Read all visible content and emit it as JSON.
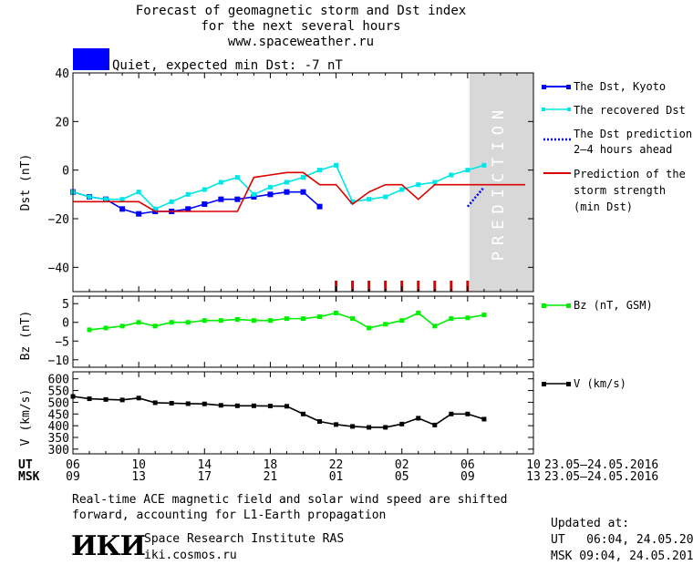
{
  "header": {
    "line1": "Forecast of geomagnetic storm and Dst index",
    "line2": "for the next several hours",
    "line3": "www.spaceweather.ru"
  },
  "status": {
    "text": "Quiet, expected min Dst: -7 nT",
    "swatch_color": "#0000ff"
  },
  "prediction_label": "PREDICTION",
  "time_axis": {
    "ut_label": "UT",
    "msk_label": "MSK",
    "ut_ticks": [
      "06",
      "10",
      "14",
      "18",
      "22",
      "02",
      "06",
      "10"
    ],
    "msk_ticks": [
      "09",
      "13",
      "17",
      "21",
      "01",
      "05",
      "09",
      "13"
    ],
    "ut_range": "23.05–24.05.2016",
    "msk_range": "23.05–24.05.2016"
  },
  "chart_data": [
    {
      "type": "line",
      "ylabel": "Dst (nT)",
      "ylim": [
        -50,
        40
      ],
      "yticks": [
        "40",
        "20",
        "0",
        "−20",
        "−40"
      ],
      "xlim_hours": [
        6,
        34
      ],
      "prediction_region_start_hour": 30,
      "series": [
        {
          "name": "The Dst, Kyoto",
          "color": "#0000ff",
          "marker": "square",
          "x": [
            6,
            7,
            8,
            9,
            10,
            11,
            12,
            13,
            14,
            15,
            16,
            17,
            18,
            19,
            20,
            21
          ],
          "y": [
            -9,
            -11,
            -12,
            -16,
            -18,
            -17,
            -17,
            -16,
            -14,
            -12,
            -12,
            -11,
            -10,
            -9,
            -9,
            -15
          ]
        },
        {
          "name": "The recovered Dst",
          "color": "#00e5e5",
          "marker": "square",
          "x": [
            6,
            7,
            8,
            9,
            10,
            11,
            12,
            13,
            14,
            15,
            16,
            17,
            18,
            19,
            20,
            21,
            22,
            23,
            24,
            25,
            26,
            27,
            28,
            29,
            30,
            31
          ],
          "y": [
            -9,
            -11,
            -12,
            -12,
            -9,
            -16,
            -13,
            -10,
            -8,
            -5,
            -3,
            -10,
            -7,
            -5,
            -3,
            0,
            2,
            -13,
            -12,
            -11,
            -8,
            -6,
            -5,
            -2,
            0,
            2
          ]
        },
        {
          "name": "The Dst prediction\n2–4 hours ahead",
          "color": "#0000ff",
          "dashed": true,
          "x": [
            30,
            31
          ],
          "y": [
            -15,
            -7
          ]
        },
        {
          "name": "Prediction of the\nstorm strength\n(min Dst)",
          "color": "#dd0000",
          "x": [
            6,
            7,
            8,
            9,
            10,
            11,
            12,
            13,
            14,
            15,
            16,
            17,
            18,
            19,
            20,
            21,
            22,
            23,
            24,
            25,
            26,
            27,
            28,
            29,
            30,
            31,
            32,
            33.5
          ],
          "y": [
            -13,
            -13,
            -13,
            -13,
            -13,
            -17,
            -17,
            -17,
            -17,
            -17,
            -17,
            -3,
            -2,
            -1,
            -1,
            -6,
            -6,
            -14,
            -9,
            -6,
            -6,
            -12,
            -6,
            -6,
            -6,
            -6,
            -6,
            -6
          ]
        }
      ],
      "event_marks_hours": [
        22,
        23,
        24,
        25,
        26,
        27,
        28,
        29,
        30
      ]
    },
    {
      "type": "line",
      "ylabel": "Bz (nT)",
      "ylim": [
        -12,
        7
      ],
      "yticks": [
        "5",
        "0",
        "−5",
        "−10"
      ],
      "series": [
        {
          "name": "Bz (nT, GSM)",
          "color": "#00ee00",
          "marker": "square",
          "x": [
            7,
            8,
            9,
            10,
            11,
            12,
            13,
            14,
            15,
            16,
            17,
            18,
            19,
            20,
            21,
            22,
            23,
            24,
            25,
            26,
            27,
            28,
            29,
            30,
            31
          ],
          "y": [
            -2,
            -1.5,
            -1,
            0,
            -1,
            0,
            0,
            0.5,
            0.5,
            0.8,
            0.5,
            0.5,
            1,
            1,
            1.5,
            2.5,
            1,
            -1.5,
            -0.5,
            0.5,
            2.5,
            -1,
            1,
            1.2,
            2
          ]
        }
      ]
    },
    {
      "type": "line",
      "ylabel": "V (km/s)",
      "ylim": [
        280,
        630
      ],
      "yticks": [
        "600",
        "550",
        "500",
        "450",
        "400",
        "350",
        "300"
      ],
      "series": [
        {
          "name": "V (km/s)",
          "color": "#000000",
          "marker": "square",
          "x": [
            6,
            7,
            8,
            9,
            10,
            11,
            12,
            13,
            14,
            15,
            16,
            17,
            18,
            19,
            20,
            21,
            22,
            23,
            24,
            25,
            26,
            27,
            28,
            29,
            30,
            31
          ],
          "y": [
            525,
            515,
            512,
            510,
            518,
            498,
            496,
            494,
            493,
            487,
            485,
            485,
            484,
            483,
            450,
            418,
            405,
            397,
            393,
            393,
            407,
            432,
            403,
            450,
            450,
            428
          ]
        }
      ]
    }
  ],
  "footer": {
    "note_line1": "Real-time ACE magnetic field and solar wind speed are shifted",
    "note_line2": "forward, accounting for L1-Earth propagation",
    "logo_text": "ИКИ",
    "institute": "Space Research Institute RAS",
    "website": "iki.cosmos.ru",
    "updated_label": "Updated at:",
    "updated_ut": "UT   06:04, 24.05.2016",
    "updated_msk": "MSK 09:04, 24.05.2016"
  }
}
